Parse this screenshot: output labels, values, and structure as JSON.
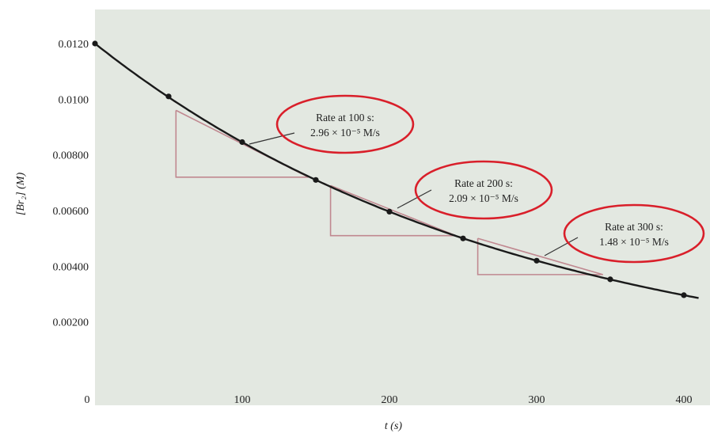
{
  "chart_data": {
    "type": "line",
    "title": "",
    "xlabel": "t (s)",
    "ylabel": "[Br₂] (M)",
    "xlim": [
      0,
      410
    ],
    "ylim": [
      0,
      0.0128
    ],
    "x_ticks": [
      0,
      100,
      200,
      300,
      400
    ],
    "x_tick_labels": [
      "0",
      "100",
      "200",
      "300",
      "400"
    ],
    "y_ticks": [
      0.002,
      0.004,
      0.006,
      0.008,
      0.01,
      0.012
    ],
    "y_tick_labels": [
      "0.00200",
      "0.00400",
      "0.00600",
      "0.00800",
      "0.0100",
      "0.0120"
    ],
    "grid": false,
    "series": [
      {
        "x": [
          0,
          50,
          100,
          150,
          200,
          250,
          300,
          350,
          400
        ],
        "y": [
          0.012,
          0.0101,
          0.00846,
          0.0071,
          0.00596,
          0.005,
          0.0042,
          0.00353,
          0.00296
        ]
      }
    ],
    "tangents": [
      {
        "label_line1": "Rate at 100 s:",
        "label_line2": "2.96 × 10⁻⁵ M/s",
        "at_x": 100,
        "x_start": 55,
        "x_end": 145,
        "y_start": 0.0096,
        "y_end": 0.0072
      },
      {
        "label_line1": "Rate at 200 s:",
        "label_line2": "2.09 × 10⁻⁵ M/s",
        "at_x": 200,
        "x_start": 160,
        "x_end": 245,
        "y_start": 0.0069,
        "y_end": 0.0051
      },
      {
        "label_line1": "Rate at 300 s:",
        "label_line2": "1.48 × 10⁻⁵ M/s",
        "at_x": 300,
        "x_start": 260,
        "x_end": 345,
        "y_start": 0.005,
        "y_end": 0.0037
      }
    ]
  },
  "colors": {
    "plot_background": "#e3e8e1",
    "curve": "#1a1a1a",
    "triangle": "#c08890",
    "ellipse": "#d91f2a",
    "text": "#222222"
  }
}
